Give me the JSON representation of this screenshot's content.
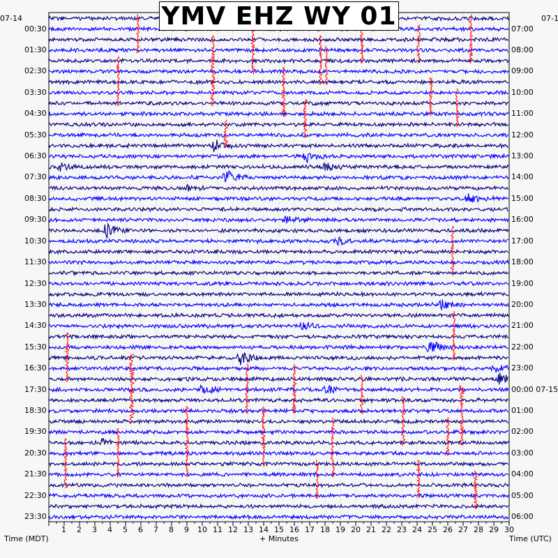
{
  "chart_data": {
    "type": "line",
    "title": "YMV EHZ WY 01",
    "left_date": "07-14",
    "right_date_start": "07-1",
    "right_date_next": "00:00 07-15",
    "left_axis_title": "Time (MDT)",
    "right_axis_title": "Time (UTC)",
    "x_axis_title": "+ Minutes",
    "xlim": [
      0,
      30
    ],
    "x_ticks": [
      1,
      2,
      3,
      4,
      5,
      6,
      7,
      8,
      9,
      10,
      11,
      12,
      13,
      14,
      15,
      16,
      17,
      18,
      19,
      20,
      21,
      22,
      23,
      24,
      25,
      26,
      27,
      28,
      29,
      30
    ],
    "left_ticks": [
      "00:30",
      "01:30",
      "02:30",
      "03:30",
      "04:30",
      "05:30",
      "06:30",
      "07:30",
      "08:30",
      "09:30",
      "10:30",
      "11:30",
      "12:30",
      "13:30",
      "14:30",
      "15:30",
      "16:30",
      "17:30",
      "18:30",
      "19:30",
      "20:30",
      "21:30",
      "22:30",
      "23:30"
    ],
    "right_ticks": [
      "07:00",
      "08:00",
      "09:00",
      "10:00",
      "11:00",
      "12:00",
      "13:00",
      "14:00",
      "15:00",
      "16:00",
      "17:00",
      "18:00",
      "19:00",
      "20:00",
      "21:00",
      "22:00",
      "23:00",
      "00:00 07-15",
      "01:00",
      "02:00",
      "03:00",
      "04:00",
      "05:00",
      "06:00"
    ],
    "trace_colors": [
      "#000080",
      "#0000ff"
    ],
    "event_color": "#ff0000",
    "trace_count": 48,
    "events": [
      {
        "row": 0,
        "minute": 5.8,
        "span_rows": 3,
        "amp": 0.45
      },
      {
        "row": 1,
        "minute": 13.3,
        "span_rows": 4,
        "amp": 0.5
      },
      {
        "row": 1,
        "minute": 20.4,
        "span_rows": 3,
        "amp": 0.4
      },
      {
        "row": 1,
        "minute": 24.1,
        "span_rows": 3,
        "amp": 0.45
      },
      {
        "row": 0,
        "minute": 27.5,
        "span_rows": 4,
        "amp": 0.45
      },
      {
        "row": 2,
        "minute": 10.7,
        "span_rows": 6,
        "amp": 0.8
      },
      {
        "row": 2,
        "minute": 17.7,
        "span_rows": 4,
        "amp": 0.5
      },
      {
        "row": 3,
        "minute": 18.1,
        "span_rows": 3,
        "amp": 0.4
      },
      {
        "row": 4,
        "minute": 4.5,
        "span_rows": 4,
        "amp": 0.4
      },
      {
        "row": 5,
        "minute": 15.3,
        "span_rows": 4,
        "amp": 0.45
      },
      {
        "row": 6,
        "minute": 24.9,
        "span_rows": 3,
        "amp": 0.5
      },
      {
        "row": 7,
        "minute": 26.6,
        "span_rows": 3,
        "amp": 0.4
      },
      {
        "row": 8,
        "minute": 16.7,
        "span_rows": 3,
        "amp": 0.6
      },
      {
        "row": 10,
        "minute": 11.5,
        "span_rows": 2,
        "amp": 0.6
      },
      {
        "row": 20,
        "minute": 26.3,
        "span_rows": 4,
        "amp": 0.4
      },
      {
        "row": 28,
        "minute": 26.4,
        "span_rows": 4,
        "amp": 0.4
      },
      {
        "row": 30,
        "minute": 1.2,
        "span_rows": 4,
        "amp": 0.5
      },
      {
        "row": 32,
        "minute": 5.4,
        "span_rows": 6,
        "amp": 1.0
      },
      {
        "row": 33,
        "minute": 12.9,
        "span_rows": 4,
        "amp": 0.45
      },
      {
        "row": 33,
        "minute": 16.0,
        "span_rows": 4,
        "amp": 0.45
      },
      {
        "row": 34,
        "minute": 20.4,
        "span_rows": 3,
        "amp": 0.4
      },
      {
        "row": 35,
        "minute": 26.9,
        "span_rows": 5,
        "amp": 0.8
      },
      {
        "row": 36,
        "minute": 23.1,
        "span_rows": 4,
        "amp": 0.45
      },
      {
        "row": 37,
        "minute": 9.0,
        "span_rows": 6,
        "amp": 0.55
      },
      {
        "row": 37,
        "minute": 14.0,
        "span_rows": 5,
        "amp": 0.55
      },
      {
        "row": 38,
        "minute": 18.5,
        "span_rows": 5,
        "amp": 0.6
      },
      {
        "row": 38,
        "minute": 26.0,
        "span_rows": 3,
        "amp": 0.4
      },
      {
        "row": 39,
        "minute": 4.5,
        "span_rows": 4,
        "amp": 0.4
      },
      {
        "row": 40,
        "minute": 1.1,
        "span_rows": 4,
        "amp": 0.45
      },
      {
        "row": 42,
        "minute": 17.5,
        "span_rows": 3,
        "amp": 0.45
      },
      {
        "row": 42,
        "minute": 24.1,
        "span_rows": 3,
        "amp": 0.45
      },
      {
        "row": 43,
        "minute": 27.8,
        "span_rows": 3,
        "amp": 0.45
      }
    ],
    "bursts": [
      {
        "row": 12,
        "minute": 10.8,
        "amp": 0.9
      },
      {
        "row": 13,
        "minute": 16.8,
        "amp": 0.8
      },
      {
        "row": 14,
        "minute": 18.0,
        "amp": 0.6
      },
      {
        "row": 14,
        "minute": 0.8,
        "amp": 0.5
      },
      {
        "row": 15,
        "minute": 11.6,
        "amp": 1.0
      },
      {
        "row": 16,
        "minute": 9.0,
        "amp": 0.5
      },
      {
        "row": 17,
        "minute": 27.4,
        "amp": 0.6
      },
      {
        "row": 19,
        "minute": 15.5,
        "amp": 0.5
      },
      {
        "row": 20,
        "minute": 3.8,
        "amp": 1.0
      },
      {
        "row": 21,
        "minute": 18.9,
        "amp": 0.5
      },
      {
        "row": 27,
        "minute": 25.6,
        "amp": 0.6
      },
      {
        "row": 29,
        "minute": 16.6,
        "amp": 0.5
      },
      {
        "row": 31,
        "minute": 24.9,
        "amp": 1.0
      },
      {
        "row": 32,
        "minute": 12.5,
        "amp": 1.0
      },
      {
        "row": 33,
        "minute": 29.1,
        "amp": 0.6
      },
      {
        "row": 34,
        "minute": 29.4,
        "amp": 0.8
      },
      {
        "row": 35,
        "minute": 10.1,
        "amp": 0.7
      },
      {
        "row": 35,
        "minute": 18.2,
        "amp": 0.5
      },
      {
        "row": 40,
        "minute": 3.5,
        "amp": 0.6
      }
    ]
  }
}
